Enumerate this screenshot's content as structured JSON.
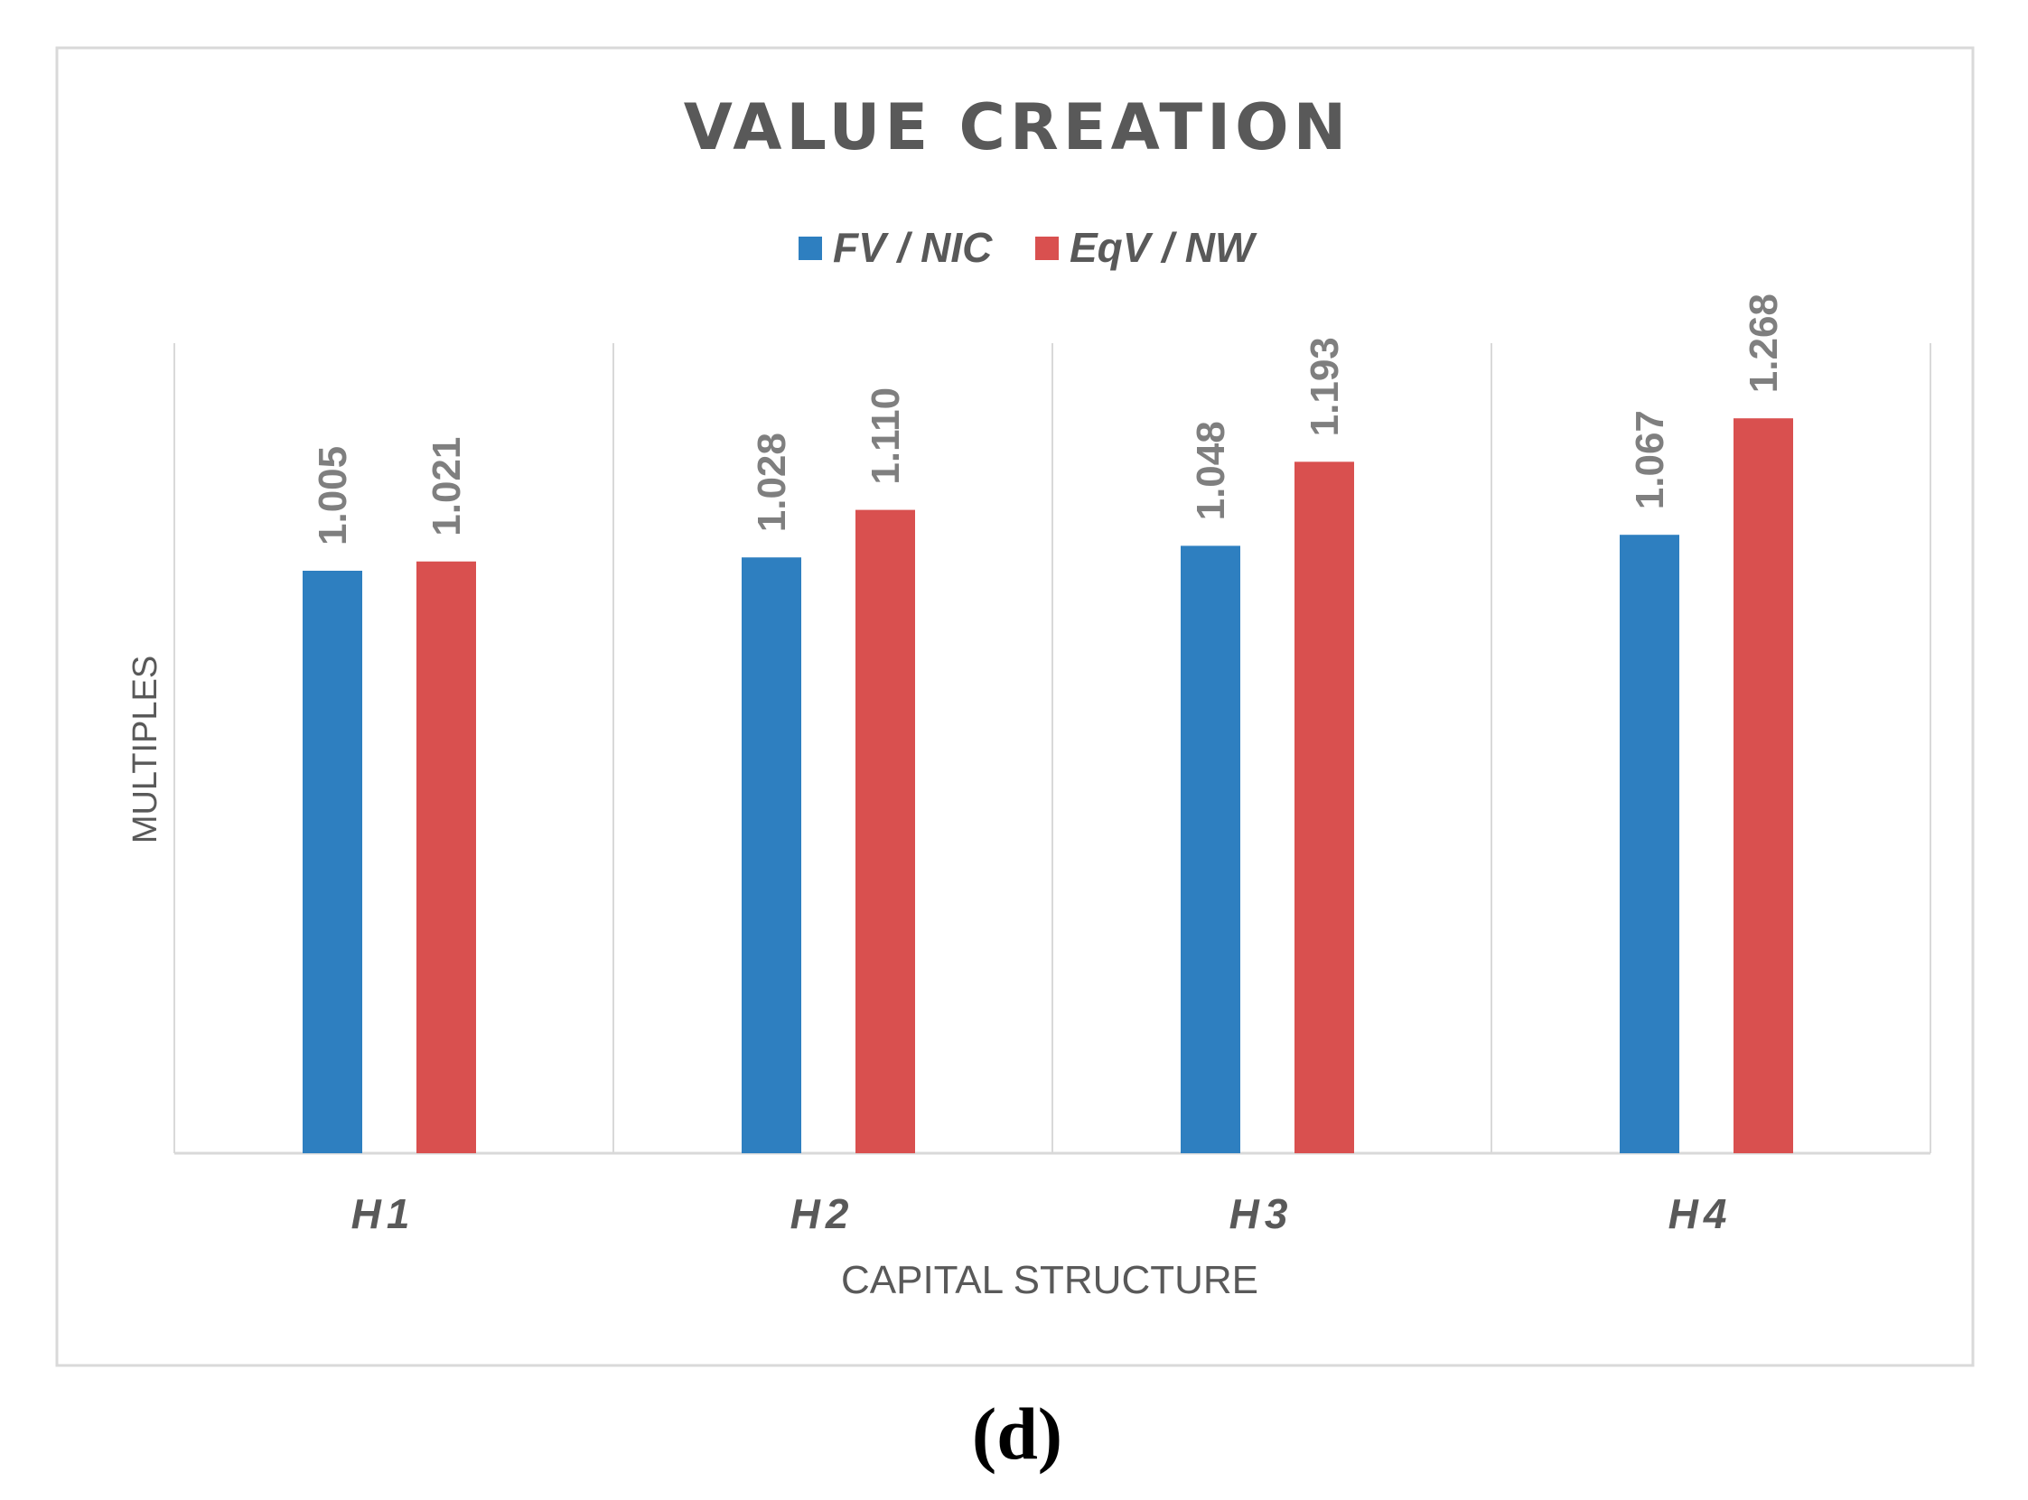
{
  "chart_data": {
    "type": "bar",
    "title": "VALUE CREATION",
    "xlabel": "CAPITAL STRUCTURE",
    "ylabel": "MULTIPLES",
    "categories": [
      "H1",
      "H2",
      "H3",
      "H4"
    ],
    "series": [
      {
        "name": "FV / NIC",
        "color": "#2e7fc0",
        "values": [
          1.005,
          1.028,
          1.048,
          1.067
        ],
        "labels": [
          "1.005",
          "1.028",
          "1.048",
          "1.067"
        ]
      },
      {
        "name": "EqV / NW",
        "color": "#d9504f",
        "values": [
          1.021,
          1.11,
          1.193,
          1.268
        ],
        "labels": [
          "1.021",
          "1.110",
          "1.193",
          "1.268"
        ]
      }
    ],
    "ylim": [
      0,
      1.4
    ],
    "grid": "vertical category separators",
    "legend_position": "top"
  },
  "caption": "(d)"
}
